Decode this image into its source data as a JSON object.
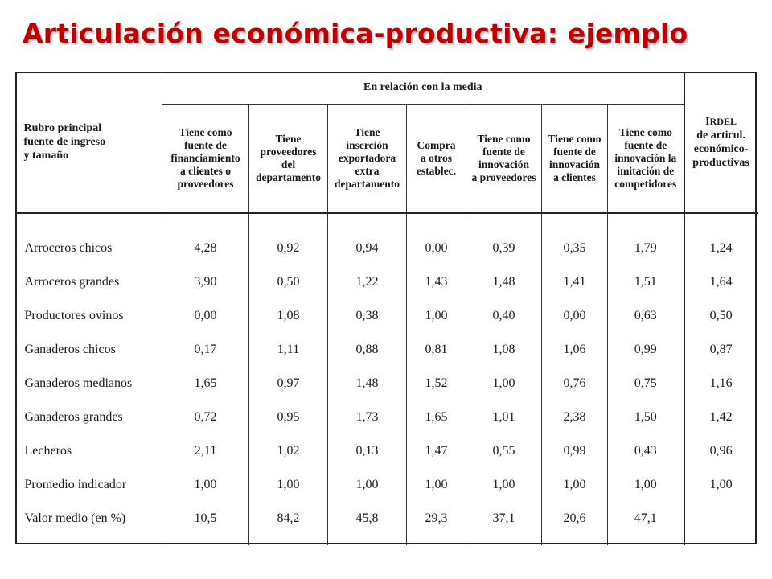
{
  "slide": {
    "title": "Articulación económica-productiva: ejemplo"
  },
  "table": {
    "group_header": "En relación con la media",
    "first_header": [
      "Rubro principal",
      "fuente de ingreso",
      "y tamaño"
    ],
    "columns": [
      [
        "Tiene como",
        "fuente de",
        "financiamiento",
        "a clientes o",
        "proveedores"
      ],
      [
        "Tiene",
        "proveedores",
        "del",
        "departamento"
      ],
      [
        "Tiene",
        "inserción",
        "exportadora",
        "extra",
        "departamento"
      ],
      [
        "Compra",
        "a otros",
        "establec."
      ],
      [
        "Tiene como",
        "fuente de",
        "innovación",
        "a proveedores"
      ],
      [
        "Tiene como",
        "fuente de",
        "innovación",
        "a clientes"
      ],
      [
        "Tiene como",
        "fuente de",
        "innovación la",
        "imitación de",
        "competidores"
      ]
    ],
    "last_header": {
      "index_main": "I",
      "index_sub": "RDEL",
      "lines": [
        "de articul.",
        "económico-",
        "productivas"
      ]
    },
    "rows": [
      {
        "label": "Arroceros chicos",
        "values": [
          "4,28",
          "0,92",
          "0,94",
          "0,00",
          "0,39",
          "0,35",
          "1,79",
          "1,24"
        ]
      },
      {
        "label": "Arroceros grandes",
        "values": [
          "3,90",
          "0,50",
          "1,22",
          "1,43",
          "1,48",
          "1,41",
          "1,51",
          "1,64"
        ]
      },
      {
        "label": "Productores ovinos",
        "values": [
          "0,00",
          "1,08",
          "0,38",
          "1,00",
          "0,40",
          "0,00",
          "0,63",
          "0,50"
        ]
      },
      {
        "label": "Ganaderos chicos",
        "values": [
          "0,17",
          "1,11",
          "0,88",
          "0,81",
          "1,08",
          "1,06",
          "0,99",
          "0,87"
        ]
      },
      {
        "label": "Ganaderos medianos",
        "values": [
          "1,65",
          "0,97",
          "1,48",
          "1,52",
          "1,00",
          "0,76",
          "0,75",
          "1,16"
        ]
      },
      {
        "label": "Ganaderos grandes",
        "values": [
          "0,72",
          "0,95",
          "1,73",
          "1,65",
          "1,01",
          "2,38",
          "1,50",
          "1,42"
        ]
      },
      {
        "label": "Lecheros",
        "values": [
          "2,11",
          "1,02",
          "0,13",
          "1,47",
          "0,55",
          "0,99",
          "0,43",
          "0,96"
        ]
      },
      {
        "label": "Promedio indicador",
        "values": [
          "1,00",
          "1,00",
          "1,00",
          "1,00",
          "1,00",
          "1,00",
          "1,00",
          "1,00"
        ]
      },
      {
        "label": "Valor medio (en %)",
        "values": [
          "10,5",
          "84,2",
          "45,8",
          "29,3",
          "37,1",
          "20,6",
          "47,1",
          ""
        ]
      }
    ]
  }
}
